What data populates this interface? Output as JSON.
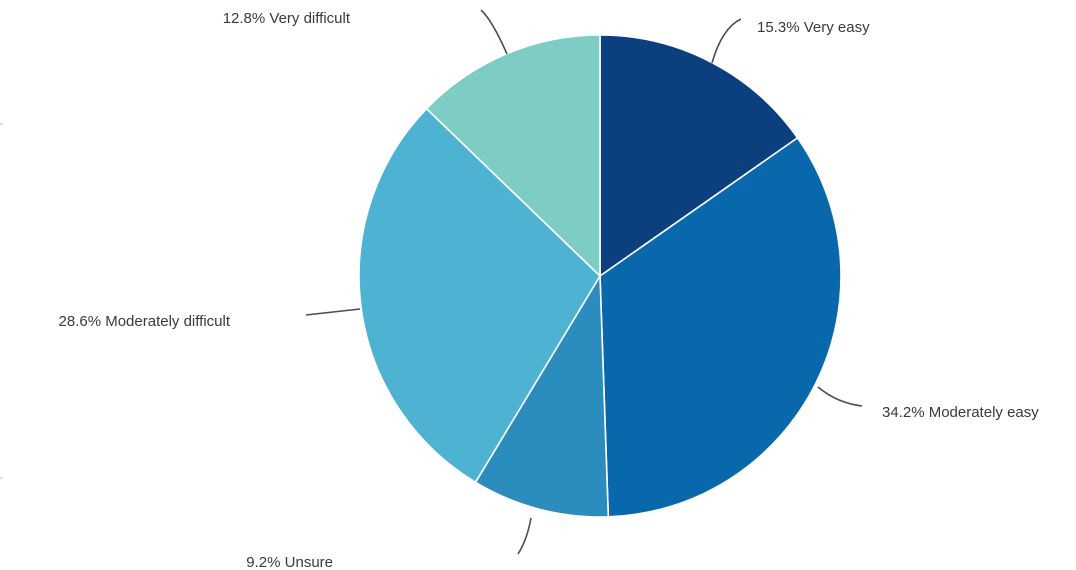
{
  "chart_data": {
    "type": "pie",
    "title": "",
    "start_angle_deg": 0,
    "direction": "clockwise",
    "slices": [
      {
        "label": "15.3% Very easy",
        "category": "Very easy",
        "value": 15.3,
        "color": "#0b3f7e"
      },
      {
        "label": "34.2% Moderately easy",
        "category": "Moderately easy",
        "value": 34.2,
        "color": "#0868ab"
      },
      {
        "label": "9.2% Unsure",
        "category": "Unsure",
        "value": 9.2,
        "color": "#2b8cbe"
      },
      {
        "label": "28.6% Moderately difficult",
        "category": "Moderately difficult",
        "value": 28.6,
        "color": "#4eb3d3"
      },
      {
        "label": "12.8% Very difficult",
        "category": "Very difficult",
        "value": 12.8,
        "color": "#7ecdc4"
      }
    ]
  }
}
